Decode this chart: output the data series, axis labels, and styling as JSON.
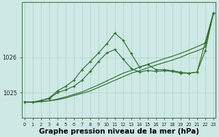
{
  "bg_color": "#cee9e5",
  "grid_color": "#aacfca",
  "line_color": "#2d6e2d",
  "xlabel": "Graphe pression niveau de la mer (hPa)",
  "xlabel_fontsize": 7.5,
  "xticks": [
    0,
    1,
    2,
    3,
    4,
    5,
    6,
    7,
    8,
    9,
    10,
    11,
    12,
    13,
    14,
    15,
    16,
    17,
    18,
    19,
    20,
    21,
    22,
    23
  ],
  "ytick_positions": [
    1025.0,
    1026.0
  ],
  "ytick_labels": [
    "1025",
    "1026"
  ],
  "ylim": [
    1024.3,
    1027.55
  ],
  "xlim": [
    -0.3,
    23.3
  ],
  "line1_no_marker": [
    1024.73,
    1024.73,
    1024.75,
    1024.77,
    1024.8,
    1024.85,
    1024.92,
    1024.98,
    1025.05,
    1025.15,
    1025.25,
    1025.35,
    1025.45,
    1025.55,
    1025.62,
    1025.7,
    1025.78,
    1025.85,
    1025.92,
    1026.0,
    1026.1,
    1026.18,
    1026.28,
    1027.25
  ],
  "line2_no_marker": [
    1024.73,
    1024.73,
    1024.75,
    1024.77,
    1024.82,
    1024.88,
    1024.95,
    1025.02,
    1025.12,
    1025.22,
    1025.33,
    1025.44,
    1025.55,
    1025.63,
    1025.72,
    1025.8,
    1025.88,
    1025.96,
    1026.03,
    1026.11,
    1026.2,
    1026.3,
    1026.4,
    1027.25
  ],
  "line3_marker": [
    1024.73,
    1024.73,
    1024.78,
    1024.83,
    1025.0,
    1025.08,
    1025.18,
    1025.35,
    1025.6,
    1025.88,
    1026.12,
    1026.22,
    1025.95,
    1025.68,
    1025.58,
    1025.63,
    1025.6,
    1025.62,
    1025.6,
    1025.55,
    1025.55,
    1025.58,
    1026.18,
    1027.25
  ],
  "line4_marker": [
    1024.73,
    1024.73,
    1024.78,
    1024.85,
    1025.05,
    1025.18,
    1025.35,
    1025.65,
    1025.88,
    1026.12,
    1026.38,
    1026.68,
    1026.48,
    1026.1,
    1025.72,
    1025.8,
    1025.65,
    1025.65,
    1025.62,
    1025.58,
    1025.55,
    1025.58,
    1026.42,
    1027.25
  ]
}
